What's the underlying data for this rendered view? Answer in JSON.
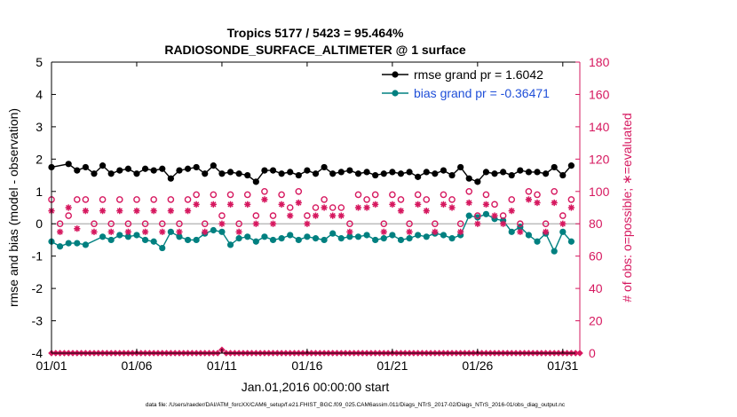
{
  "chart_data": {
    "type": "line",
    "title_line1": "Tropics 5177 / 5423 = 95.464%",
    "title_line2": "RADIOSONDE_SURFACE_ALTIMETER @ 1 surface",
    "xlabel": "Jan.01,2016 00:00:00 start",
    "ylabel_left": "rmse and bias (model - observation)",
    "ylabel_right": "# of obs: o=possible; ∗=evaluated",
    "footer": "data file: /Users/raeder/DAI/ATM_forcXX/CAM6_setup/f.e21.FHIST_BGC.f09_025.CAM6assim.011/Diags_NTrS_2017-02/Diags_NTrS_2016-01/obs_diag_output.nc",
    "x_ticks": [
      "01/01",
      "01/06",
      "01/11",
      "01/16",
      "01/21",
      "01/26",
      "01/31"
    ],
    "x_tick_values": [
      1,
      6,
      11,
      16,
      21,
      26,
      31
    ],
    "xlim": [
      1,
      32
    ],
    "ylim_left": [
      -4,
      5
    ],
    "y_ticks_left": [
      "-4",
      "-3",
      "-2",
      "-1",
      "0",
      "1",
      "2",
      "3",
      "4",
      "5"
    ],
    "ylim_right": [
      0,
      180
    ],
    "y_ticks_right": [
      "0",
      "20",
      "40",
      "60",
      "80",
      "100",
      "120",
      "140",
      "160",
      "180"
    ],
    "colors": {
      "rmse": "#000000",
      "bias": "#008080",
      "obs": "#d6185f",
      "zero_line": "#b0b0b0"
    },
    "legend": [
      {
        "name": "rmse grand pr = 1.6042",
        "color": "#000000"
      },
      {
        "name": "bias grand pr = -0.36471",
        "color": "#1f4fd8"
      }
    ],
    "x": [
      1.0,
      1.25,
      1.5,
      1.75,
      2.0,
      2.25,
      2.5,
      2.75,
      3.0,
      3.25,
      3.5,
      3.75,
      4.0,
      4.25,
      4.5,
      4.75,
      5.0,
      5.25,
      5.5,
      5.75,
      6.0,
      6.25,
      6.5,
      6.75,
      7.0,
      7.25,
      7.5,
      7.75,
      8.0,
      8.25,
      8.5,
      8.75,
      9.0,
      9.25,
      9.5,
      9.75,
      10.0,
      10.25,
      10.5,
      10.75,
      11.0,
      11.25,
      11.5,
      11.75,
      12.0,
      12.25,
      12.5,
      12.75,
      13.0,
      13.25,
      13.5,
      13.75,
      14.0,
      14.25,
      14.5,
      14.75,
      15.0,
      15.25,
      15.5,
      15.75,
      16.0,
      16.25,
      16.5,
      16.75,
      17.0,
      17.25,
      17.5,
      17.75,
      18.0,
      18.25,
      18.5,
      18.75,
      19.0,
      19.25,
      19.5,
      19.75,
      20.0,
      20.25,
      20.5,
      20.75,
      21.0,
      21.25,
      21.5,
      21.75,
      22.0,
      22.25,
      22.5,
      22.75,
      23.0,
      23.25,
      23.5,
      23.75,
      24.0,
      24.25,
      24.5,
      24.75,
      25.0,
      25.25,
      25.5,
      25.75,
      26.0,
      26.25,
      26.5,
      26.75,
      27.0,
      27.25,
      27.5,
      27.75,
      28.0,
      28.25,
      28.5,
      28.75,
      29.0,
      29.25,
      29.5,
      29.75,
      30.0,
      30.25,
      30.5,
      30.75,
      31.0,
      31.25,
      31.5,
      31.75,
      32.0
    ],
    "series": [
      {
        "name": "rmse",
        "axis": "left",
        "marker": "filled-circle",
        "color": "#000000",
        "x": [
          1.0,
          2.0,
          2.5,
          3.0,
          3.5,
          4.0,
          4.5,
          5.0,
          5.5,
          6.0,
          6.5,
          7.0,
          7.5,
          8.0,
          8.5,
          9.0,
          9.5,
          10.0,
          10.5,
          11.0,
          11.5,
          12.0,
          12.5,
          13.0,
          13.5,
          14.0,
          14.5,
          15.0,
          15.5,
          16.0,
          16.5,
          17.0,
          17.5,
          18.0,
          18.5,
          19.0,
          19.5,
          20.0,
          20.5,
          21.0,
          21.5,
          22.0,
          22.5,
          23.0,
          23.5,
          24.0,
          24.5,
          25.0,
          25.5,
          26.0,
          26.5,
          27.0,
          27.5,
          28.0,
          28.5,
          29.0,
          29.5,
          30.0,
          30.5,
          31.0,
          31.5
        ],
        "values": [
          1.75,
          1.85,
          1.65,
          1.75,
          1.55,
          1.8,
          1.55,
          1.65,
          1.7,
          1.55,
          1.7,
          1.65,
          1.7,
          1.4,
          1.65,
          1.7,
          1.75,
          1.55,
          1.8,
          1.55,
          1.6,
          1.55,
          1.5,
          1.3,
          1.65,
          1.65,
          1.55,
          1.6,
          1.5,
          1.65,
          1.55,
          1.75,
          1.55,
          1.6,
          1.65,
          1.55,
          1.6,
          1.5,
          1.55,
          1.6,
          1.55,
          1.6,
          1.45,
          1.6,
          1.55,
          1.65,
          1.5,
          1.75,
          1.4,
          1.3,
          1.6,
          1.55,
          1.6,
          1.5,
          1.65,
          1.6,
          1.6,
          1.55,
          1.75,
          1.5,
          1.8
        ]
      },
      {
        "name": "bias",
        "axis": "left",
        "marker": "filled-circle",
        "color": "#008080",
        "x": [
          1.0,
          1.5,
          2.0,
          2.5,
          3.0,
          4.0,
          4.5,
          5.0,
          5.5,
          6.0,
          6.5,
          7.0,
          7.5,
          8.0,
          8.5,
          9.0,
          9.5,
          10.0,
          10.5,
          11.0,
          11.5,
          12.0,
          12.5,
          13.0,
          13.5,
          14.0,
          14.5,
          15.0,
          15.5,
          16.0,
          16.5,
          17.0,
          17.5,
          18.0,
          18.5,
          19.0,
          19.5,
          20.0,
          20.5,
          21.0,
          21.5,
          22.0,
          22.5,
          23.0,
          23.5,
          24.0,
          24.5,
          25.0,
          25.5,
          26.0,
          26.5,
          27.0,
          27.5,
          28.0,
          28.5,
          29.0,
          29.5,
          30.0,
          30.5,
          31.0,
          31.5
        ],
        "values": [
          -0.55,
          -0.7,
          -0.6,
          -0.6,
          -0.65,
          -0.4,
          -0.5,
          -0.35,
          -0.4,
          -0.35,
          -0.5,
          -0.55,
          -0.75,
          -0.25,
          -0.4,
          -0.5,
          -0.5,
          -0.3,
          -0.2,
          -0.25,
          -0.65,
          -0.45,
          -0.4,
          -0.55,
          -0.4,
          -0.5,
          -0.45,
          -0.35,
          -0.5,
          -0.4,
          -0.45,
          -0.5,
          -0.3,
          -0.45,
          -0.4,
          -0.4,
          -0.35,
          -0.5,
          -0.45,
          -0.35,
          -0.5,
          -0.45,
          -0.35,
          -0.4,
          -0.3,
          -0.35,
          -0.45,
          -0.35,
          0.25,
          0.2,
          0.3,
          0.15,
          0.1,
          -0.25,
          -0.1,
          -0.35,
          -0.55,
          -0.3,
          -0.85,
          -0.25,
          -0.55
        ]
      },
      {
        "name": "possible obs",
        "axis": "right",
        "marker": "open-circle",
        "color": "#d6185f",
        "x": [
          1.0,
          1.5,
          2.0,
          2.5,
          3.0,
          3.5,
          4.0,
          4.5,
          5.0,
          5.5,
          6.0,
          6.5,
          7.0,
          7.5,
          8.0,
          8.5,
          9.0,
          9.5,
          10.0,
          10.5,
          11.0,
          11.5,
          12.0,
          12.5,
          13.0,
          13.5,
          14.0,
          14.5,
          15.0,
          15.5,
          16.0,
          16.5,
          17.0,
          17.5,
          18.0,
          18.5,
          19.0,
          19.5,
          20.0,
          20.5,
          21.0,
          21.5,
          22.0,
          22.5,
          23.0,
          23.5,
          24.0,
          24.5,
          25.0,
          25.5,
          26.0,
          26.5,
          27.0,
          27.5,
          28.0,
          28.5,
          29.0,
          29.5,
          30.0,
          30.5,
          31.0,
          31.5
        ],
        "values": [
          95,
          80,
          85,
          95,
          95,
          80,
          95,
          80,
          95,
          80,
          95,
          80,
          95,
          80,
          95,
          80,
          95,
          98,
          80,
          98,
          85,
          98,
          80,
          98,
          85,
          100,
          85,
          98,
          90,
          100,
          85,
          90,
          95,
          90,
          90,
          80,
          98,
          95,
          98,
          80,
          98,
          95,
          80,
          98,
          95,
          80,
          98,
          95,
          80,
          100,
          85,
          98,
          92,
          85,
          95,
          80,
          100,
          98,
          80,
          100,
          85,
          95
        ]
      },
      {
        "name": "evaluated obs",
        "axis": "right",
        "marker": "asterisk",
        "color": "#d6185f",
        "x": [
          1.0,
          1.5,
          2.0,
          2.5,
          3.0,
          3.5,
          4.0,
          4.5,
          5.0,
          5.5,
          6.0,
          6.5,
          7.0,
          7.5,
          8.0,
          8.5,
          9.0,
          9.5,
          10.0,
          10.5,
          11.0,
          11.5,
          12.0,
          12.5,
          13.0,
          13.5,
          14.0,
          14.5,
          15.0,
          15.5,
          16.0,
          16.5,
          17.0,
          17.5,
          18.0,
          18.5,
          19.0,
          19.5,
          20.0,
          20.5,
          21.0,
          21.5,
          22.0,
          22.5,
          23.0,
          23.5,
          24.0,
          24.5,
          25.0,
          25.5,
          26.0,
          26.5,
          27.0,
          27.5,
          28.0,
          28.5,
          29.0,
          29.5,
          30.0,
          30.5,
          31.0,
          31.5
        ],
        "values": [
          88,
          75,
          90,
          77,
          88,
          75,
          88,
          75,
          88,
          75,
          88,
          75,
          88,
          75,
          88,
          75,
          88,
          92,
          75,
          92,
          80,
          92,
          75,
          92,
          80,
          95,
          80,
          92,
          85,
          93,
          80,
          85,
          90,
          85,
          85,
          75,
          90,
          90,
          92,
          75,
          92,
          88,
          75,
          92,
          88,
          75,
          92,
          90,
          75,
          93,
          80,
          92,
          85,
          80,
          88,
          75,
          95,
          93,
          75,
          93,
          80,
          90
        ]
      },
      {
        "name": "zero counts",
        "axis": "right",
        "marker": "mixed",
        "color": "#d6185f",
        "x": [
          1.0,
          1.25,
          1.5,
          1.75,
          2.0,
          2.25,
          2.5,
          2.75,
          3.0,
          3.25,
          3.5,
          3.75,
          4.0,
          4.25,
          4.5,
          4.75,
          5.0,
          5.25,
          5.5,
          5.75,
          6.0,
          6.25,
          6.5,
          6.75,
          7.0,
          7.25,
          7.5,
          7.75,
          8.0,
          8.25,
          8.5,
          8.75,
          9.0,
          9.25,
          9.5,
          9.75,
          10.0,
          10.25,
          10.5,
          10.75,
          11.0,
          11.25,
          11.5,
          11.75,
          12.0,
          12.25,
          12.5,
          12.75,
          13.0,
          13.25,
          13.5,
          13.75,
          14.0,
          14.25,
          14.5,
          14.75,
          15.0,
          15.25,
          15.5,
          15.75,
          16.0,
          16.25,
          16.5,
          16.75,
          17.0,
          17.25,
          17.5,
          17.75,
          18.0,
          18.25,
          18.5,
          18.75,
          19.0,
          19.25,
          19.5,
          19.75,
          20.0,
          20.25,
          20.5,
          20.75,
          21.0,
          21.25,
          21.5,
          21.75,
          22.0,
          22.25,
          22.5,
          22.75,
          23.0,
          23.25,
          23.5,
          23.75,
          24.0,
          24.25,
          24.5,
          24.75,
          25.0,
          25.25,
          25.5,
          25.75,
          26.0,
          26.25,
          26.5,
          26.75,
          27.0,
          27.25,
          27.5,
          27.75,
          28.0,
          28.25,
          28.5,
          28.75,
          29.0,
          29.25,
          29.5,
          29.75,
          30.0,
          30.25,
          30.5,
          30.75,
          31.0,
          31.25,
          31.5,
          31.75,
          32.0
        ],
        "values": [
          0,
          0,
          0,
          0,
          0,
          0,
          0,
          0,
          0,
          0,
          0,
          0,
          0,
          0,
          0,
          0,
          0,
          0,
          0,
          0,
          0,
          0,
          0,
          0,
          0,
          0,
          0,
          0,
          0,
          0,
          0,
          0,
          0,
          0,
          0,
          0,
          0,
          0,
          0,
          0,
          2,
          0,
          0,
          0,
          0,
          0,
          0,
          0,
          0,
          0,
          0,
          0,
          0,
          0,
          0,
          0,
          0,
          0,
          0,
          0,
          0,
          0,
          0,
          0,
          0,
          0,
          0,
          0,
          0,
          0,
          0,
          0,
          0,
          0,
          0,
          0,
          0,
          0,
          0,
          0,
          0,
          0,
          0,
          0,
          0,
          0,
          0,
          0,
          0,
          0,
          0,
          0,
          0,
          0,
          0,
          0,
          0,
          0,
          0,
          0,
          0,
          0,
          0,
          0,
          0,
          0,
          0,
          0,
          0,
          0,
          0,
          0,
          0,
          0,
          0,
          0,
          0,
          0,
          0,
          0,
          0,
          0,
          0,
          0,
          0
        ]
      }
    ]
  }
}
